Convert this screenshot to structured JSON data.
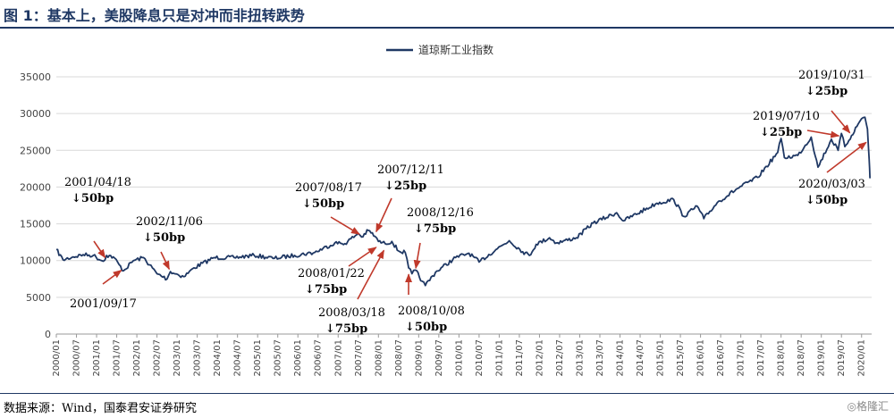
{
  "header": {
    "title": "图 1：基本上，美股降息只是对冲而非扭转跌势"
  },
  "footer": {
    "source": "数据来源：Wind，国泰君安证券研究",
    "watermark": "◎格隆汇"
  },
  "chart_data": {
    "type": "line",
    "series": [
      {
        "name": "道琼斯工业指数",
        "color": "#1f3864",
        "points": [
          [
            "2000-01",
            11500
          ],
          [
            "2000-03",
            10100
          ],
          [
            "2000-06",
            10500
          ],
          [
            "2000-09",
            10800
          ],
          [
            "2000-12",
            10700
          ],
          [
            "2001-03",
            9900
          ],
          [
            "2001-04",
            10700
          ],
          [
            "2001-06",
            10500
          ],
          [
            "2001-09",
            8600
          ],
          [
            "2001-12",
            10000
          ],
          [
            "2002-03",
            10400
          ],
          [
            "2002-07",
            8200
          ],
          [
            "2002-10",
            7500
          ],
          [
            "2002-11",
            8500
          ],
          [
            "2003-03",
            7800
          ],
          [
            "2003-06",
            9000
          ],
          [
            "2003-12",
            10400
          ],
          [
            "2004-06",
            10400
          ],
          [
            "2004-12",
            10700
          ],
          [
            "2005-06",
            10300
          ],
          [
            "2005-12",
            10700
          ],
          [
            "2006-06",
            11100
          ],
          [
            "2006-12",
            12400
          ],
          [
            "2007-03",
            12300
          ],
          [
            "2007-07",
            13700
          ],
          [
            "2007-08",
            13200
          ],
          [
            "2007-10",
            14100
          ],
          [
            "2007-12",
            13300
          ],
          [
            "2008-01",
            12600
          ],
          [
            "2008-03",
            12300
          ],
          [
            "2008-05",
            12600
          ],
          [
            "2008-07",
            11300
          ],
          [
            "2008-09",
            11100
          ],
          [
            "2008-10",
            9000
          ],
          [
            "2008-11",
            8200
          ],
          [
            "2008-12",
            8700
          ],
          [
            "2009-02",
            7200
          ],
          [
            "2009-03",
            6600
          ],
          [
            "2009-06",
            8400
          ],
          [
            "2009-12",
            10400
          ],
          [
            "2010-04",
            11000
          ],
          [
            "2010-07",
            9800
          ],
          [
            "2010-12",
            11500
          ],
          [
            "2011-04",
            12700
          ],
          [
            "2011-08",
            11200
          ],
          [
            "2011-10",
            10700
          ],
          [
            "2011-12",
            12200
          ],
          [
            "2012-04",
            13100
          ],
          [
            "2012-06",
            12400
          ],
          [
            "2012-12",
            13100
          ],
          [
            "2013-05",
            15100
          ],
          [
            "2013-12",
            16500
          ],
          [
            "2014-02",
            15400
          ],
          [
            "2014-12",
            17800
          ],
          [
            "2015-05",
            18300
          ],
          [
            "2015-08",
            16000
          ],
          [
            "2015-12",
            17400
          ],
          [
            "2016-02",
            15700
          ],
          [
            "2016-06",
            17900
          ],
          [
            "2016-12",
            19800
          ],
          [
            "2017-06",
            21300
          ],
          [
            "2017-12",
            24700
          ],
          [
            "2018-01",
            26600
          ],
          [
            "2018-02",
            24000
          ],
          [
            "2018-06",
            24300
          ],
          [
            "2018-10",
            26800
          ],
          [
            "2018-12",
            22700
          ],
          [
            "2019-04",
            26500
          ],
          [
            "2019-06",
            25000
          ],
          [
            "2019-07",
            27300
          ],
          [
            "2019-08",
            25500
          ],
          [
            "2019-10",
            27000
          ],
          [
            "2019-12",
            28600
          ],
          [
            "2020-01",
            29300
          ],
          [
            "2020-02",
            29500
          ],
          [
            "2020-02-24",
            27900
          ],
          [
            "2020-03",
            25900
          ],
          [
            "2020-03-09",
            23800
          ],
          [
            "2020-03-16",
            21200
          ]
        ]
      }
    ],
    "x_range": [
      "2000-01",
      "2020-03"
    ],
    "x_ticks": [
      "2000/01",
      "2000/07",
      "2001/01",
      "2001/07",
      "2002/01",
      "2002/07",
      "2003/01",
      "2003/07",
      "2004/01",
      "2004/07",
      "2005/01",
      "2005/07",
      "2006/01",
      "2006/07",
      "2007/01",
      "2007/07",
      "2008/01",
      "2008/07",
      "2009/01",
      "2009/07",
      "2010/01",
      "2010/07",
      "2011/01",
      "2011/07",
      "2012/01",
      "2012/07",
      "2013/01",
      "2013/07",
      "2014/01",
      "2014/07",
      "2015/01",
      "2015/07",
      "2016/01",
      "2016/07",
      "2017/01",
      "2017/07",
      "2018/01",
      "2018/07",
      "2019/01",
      "2019/07",
      "2020/01"
    ],
    "y_ticks": [
      "0",
      "5000",
      "10000",
      "15000",
      "20000",
      "25000",
      "30000",
      "35000"
    ],
    "ylim": [
      0,
      35000
    ],
    "grid": "horizontal",
    "legend": "top-center",
    "annotations": [
      {
        "date": "2001/04/18",
        "cut": "↓50bp",
        "target": [
          "2001-04",
          10100
        ]
      },
      {
        "date": "2001/09/17",
        "cut": "",
        "target": [
          "2001-09",
          8900
        ]
      },
      {
        "date": "2002/11/06",
        "cut": "↓50bp",
        "target": [
          "2002-11",
          8500
        ]
      },
      {
        "date": "2007/08/17",
        "cut": "↓50bp",
        "target": [
          "2007-08",
          13400
        ]
      },
      {
        "date": "2007/12/11",
        "cut": "↓25bp",
        "target": [
          "2007-12",
          13600
        ]
      },
      {
        "date": "2008/01/22",
        "cut": "↓75bp",
        "target": [
          "2008-01",
          12000
        ]
      },
      {
        "date": "2008/03/18",
        "cut": "↓75bp",
        "target": [
          "2008-03",
          11700
        ]
      },
      {
        "date": "2008/10/08",
        "cut": "↓50bp",
        "target": [
          "2008-10",
          8500
        ]
      },
      {
        "date": "2008/12/16",
        "cut": "↓75bp",
        "target": [
          "2008-12",
          8600
        ]
      },
      {
        "date": "2019/07/10",
        "cut": "↓25bp",
        "target": [
          "2019-07",
          26900
        ]
      },
      {
        "date": "2019/10/31",
        "cut": "↓25bp",
        "target": [
          "2019-10",
          27100
        ]
      },
      {
        "date": "2020/03/03",
        "cut": "↓50bp",
        "target": [
          "2020-03",
          26300
        ]
      }
    ]
  }
}
